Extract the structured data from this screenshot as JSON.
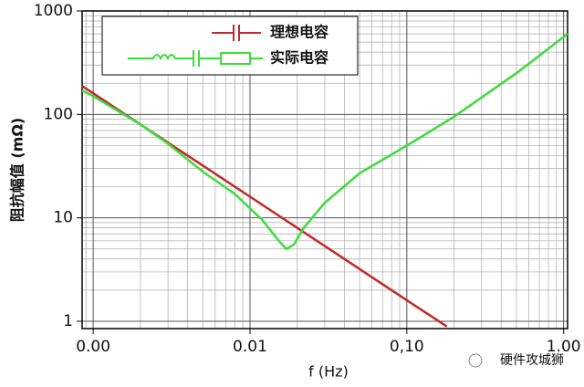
{
  "chart_data": {
    "type": "line",
    "xlabel": "f (Hz)",
    "ylabel": "阻抗幅值 (mΩ)",
    "log_x": true,
    "log_y": true,
    "grid": true,
    "minor_grid": true,
    "legend": "upper left",
    "xlim": [
      0.00085,
      1.06
    ],
    "ylim": [
      0.85,
      1000
    ],
    "xticks": [
      {
        "value": 0.001,
        "label": "0.00"
      },
      0.01,
      {
        "value": 0.1,
        "label": "0,10"
      },
      {
        "value": 1,
        "label": "1.00"
      }
    ],
    "yticks": [
      1,
      10,
      100,
      1000
    ],
    "series": [
      {
        "name": "理想电容",
        "color": "#c0282d",
        "x": [
          0.00085,
          0.001,
          0.01,
          0.1,
          0.18
        ],
        "values": [
          188,
          160,
          16,
          1.6,
          0.89
        ]
      },
      {
        "name": "实际电容",
        "color": "#3ddc3d",
        "x": [
          0.00085,
          0.001,
          0.002,
          0.003,
          0.005,
          0.008,
          0.012,
          0.015,
          0.017,
          0.019,
          0.022,
          0.03,
          0.05,
          0.1,
          0.2,
          0.5,
          1.06
        ],
        "values": [
          170,
          150,
          80,
          52,
          28,
          17,
          9.5,
          6.2,
          5,
          5.5,
          8,
          14,
          27,
          50,
          95,
          250,
          600
        ]
      }
    ],
    "watermark": "硬件攻城狮"
  }
}
